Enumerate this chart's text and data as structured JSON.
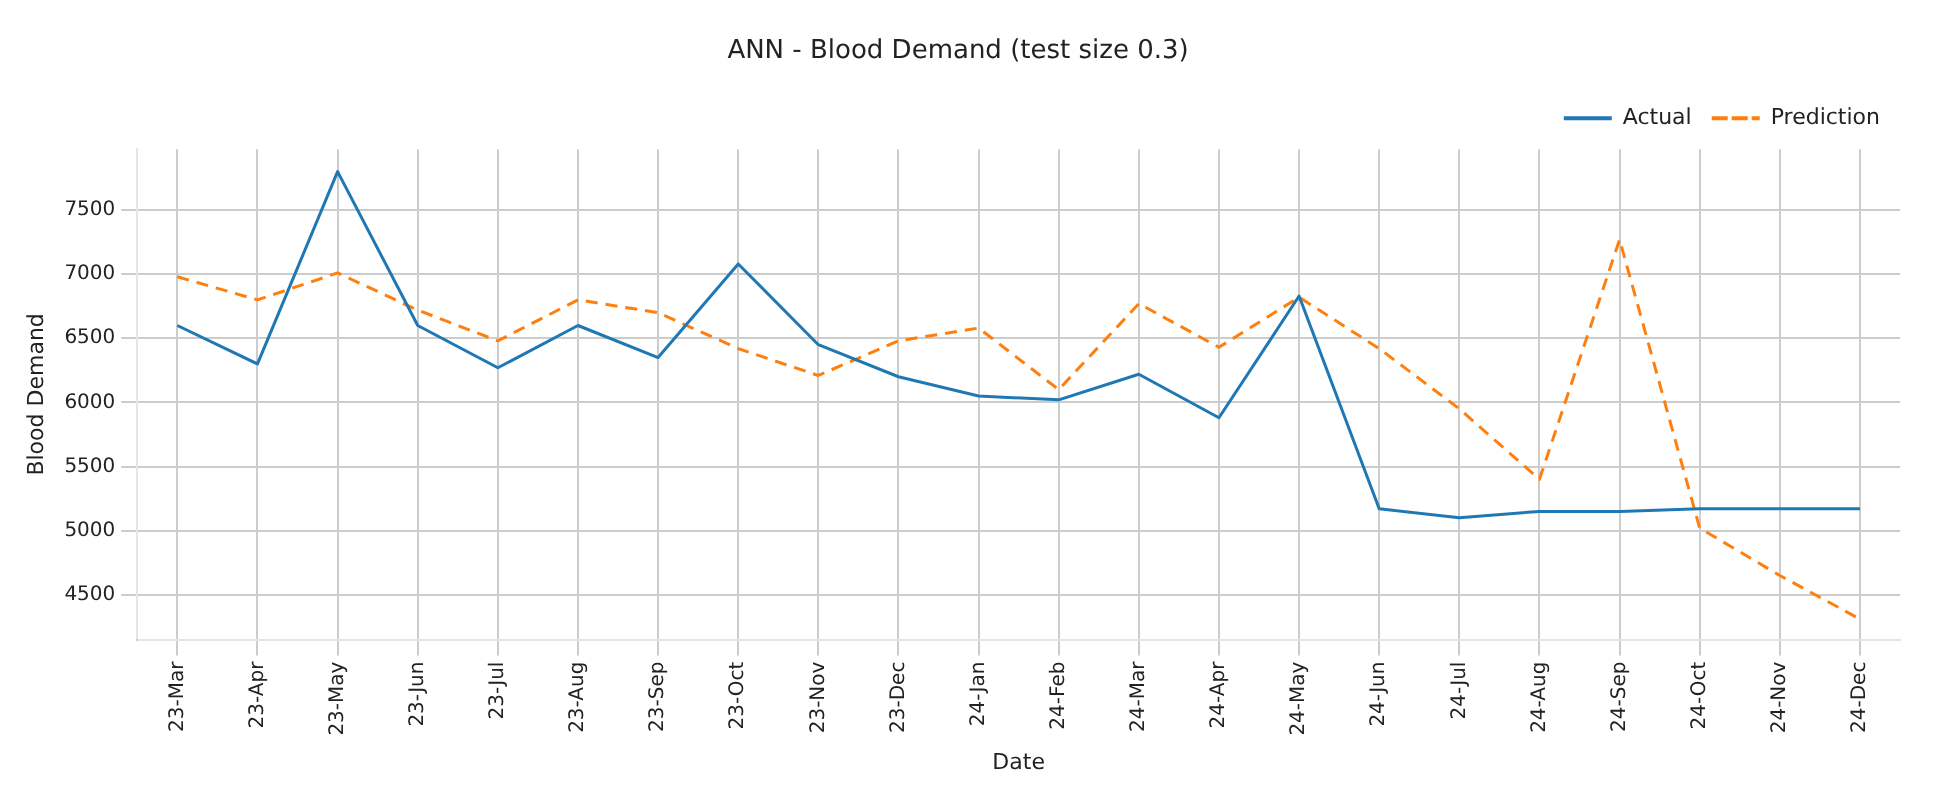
{
  "chart_data": {
    "type": "line",
    "title": "ANN - Blood Demand (test size 0.3)",
    "xlabel": "Date",
    "ylabel": "Blood Demand",
    "categories": [
      "23-Mar",
      "23-Apr",
      "23-May",
      "23-Jun",
      "23-Jul",
      "23-Aug",
      "23-Sep",
      "23-Oct",
      "23-Nov",
      "23-Dec",
      "24-Jan",
      "24-Feb",
      "24-Mar",
      "24-Apr",
      "24-May",
      "24-Jun",
      "24-Jul",
      "24-Aug",
      "24-Sep",
      "24-Oct",
      "24-Nov",
      "24-Dec"
    ],
    "series": [
      {
        "name": "Actual",
        "color": "#1f77b4",
        "line_style": "solid",
        "values": [
          6600,
          6300,
          7800,
          6600,
          6270,
          6600,
          6350,
          7080,
          6450,
          6200,
          6050,
          6020,
          6220,
          5880,
          6830,
          5170,
          5100,
          5150,
          5150,
          5170,
          5170,
          5170
        ]
      },
      {
        "name": "Prediction",
        "color": "#ff7f0e",
        "line_style": "dashed",
        "values": [
          6980,
          6800,
          7010,
          6720,
          6480,
          6800,
          6700,
          6420,
          6210,
          6480,
          6580,
          6100,
          6770,
          6430,
          6820,
          6420,
          5950,
          5400,
          7270,
          5020,
          4650,
          4310
        ]
      }
    ],
    "ylim": [
      4150,
      7975
    ],
    "yticks": [
      4500,
      5000,
      5500,
      6000,
      6500,
      7000,
      7500
    ],
    "grid": true,
    "legend": "top right",
    "marker": "none"
  }
}
